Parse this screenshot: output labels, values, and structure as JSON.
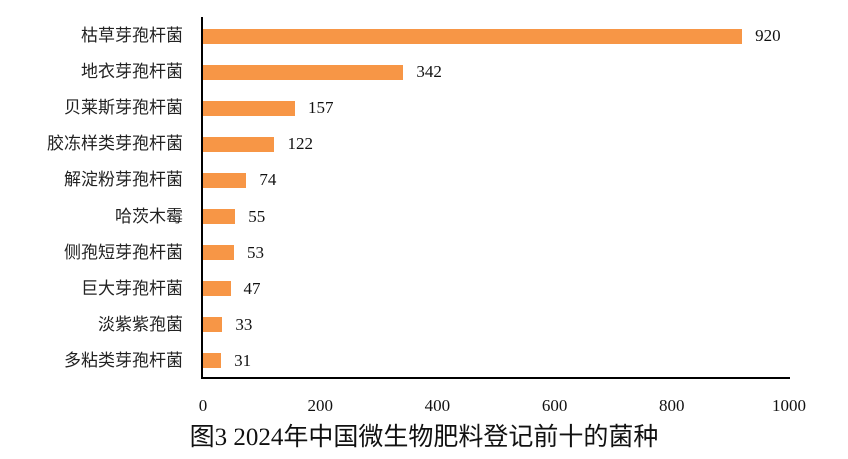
{
  "chart_data": {
    "type": "bar",
    "orientation": "horizontal",
    "title": "图3 2024年中国微生物肥料登记前十的菌种",
    "xlabel": "",
    "ylabel": "",
    "xlim": [
      0,
      1000
    ],
    "xticks": [
      "0",
      "200",
      "400",
      "600",
      "800",
      "1000"
    ],
    "grid": false,
    "legend": null,
    "bar_color": "#f79646",
    "categories": [
      "枯草芽孢杆菌",
      "地衣芽孢杆菌",
      "贝莱斯芽孢杆菌",
      "胶冻样类芽孢杆菌",
      "解淀粉芽孢杆菌",
      "哈茨木霉",
      "侧孢短芽孢杆菌",
      "巨大芽孢杆菌",
      "淡紫紫孢菌",
      "多粘类芽孢杆菌"
    ],
    "values": [
      920,
      342,
      157,
      122,
      74,
      55,
      53,
      47,
      33,
      31
    ],
    "value_labels": [
      "920",
      "342",
      "157",
      "122",
      "74",
      "55",
      "53",
      "47",
      "33",
      "31"
    ]
  }
}
